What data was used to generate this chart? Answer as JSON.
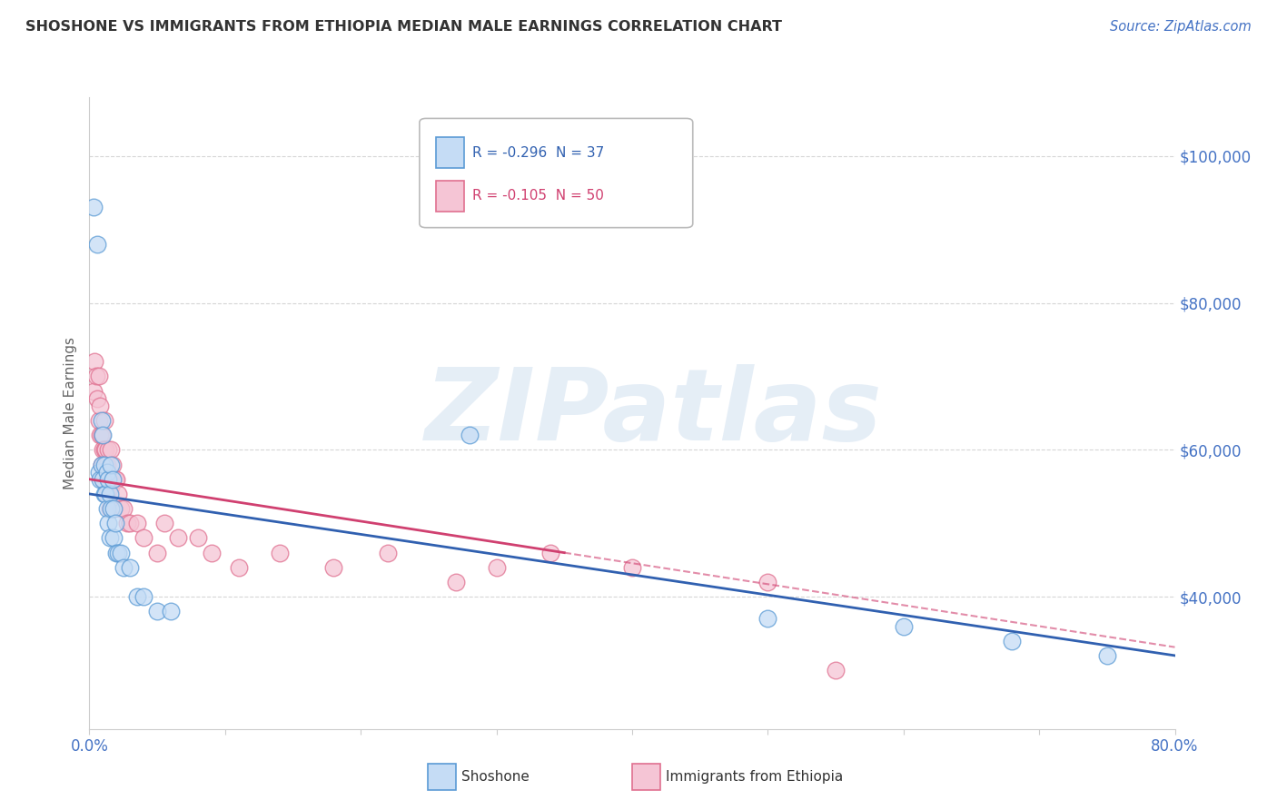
{
  "title": "SHOSHONE VS IMMIGRANTS FROM ETHIOPIA MEDIAN MALE EARNINGS CORRELATION CHART",
  "source": "Source: ZipAtlas.com",
  "ylabel": "Median Male Earnings",
  "yticks": [
    40000,
    60000,
    80000,
    100000
  ],
  "ytick_labels": [
    "$40,000",
    "$60,000",
    "$80,000",
    "$100,000"
  ],
  "xmin": 0.0,
  "xmax": 0.8,
  "ymin": 22000,
  "ymax": 108000,
  "legend_r1": "R = -0.296  N = 37",
  "legend_r2": "R = -0.105  N = 50",
  "color_shoshone_fill": "#c5dcf5",
  "color_shoshone_edge": "#5b9bd5",
  "color_ethiopia_fill": "#f5c5d5",
  "color_ethiopia_edge": "#e07090",
  "color_line_shoshone": "#3060b0",
  "color_line_ethiopia": "#d04070",
  "color_axis_label": "#4472c4",
  "watermark_text": "ZIPatlas",
  "shoshone_x": [
    0.003,
    0.006,
    0.007,
    0.008,
    0.009,
    0.009,
    0.01,
    0.01,
    0.011,
    0.011,
    0.012,
    0.013,
    0.013,
    0.014,
    0.014,
    0.015,
    0.015,
    0.016,
    0.016,
    0.017,
    0.018,
    0.018,
    0.019,
    0.02,
    0.021,
    0.023,
    0.025,
    0.03,
    0.035,
    0.04,
    0.05,
    0.06,
    0.28,
    0.5,
    0.6,
    0.68,
    0.75
  ],
  "shoshone_y": [
    93000,
    88000,
    57000,
    56000,
    64000,
    58000,
    56000,
    62000,
    54000,
    58000,
    54000,
    52000,
    57000,
    50000,
    56000,
    54000,
    48000,
    58000,
    52000,
    56000,
    52000,
    48000,
    50000,
    46000,
    46000,
    46000,
    44000,
    44000,
    40000,
    40000,
    38000,
    38000,
    62000,
    37000,
    36000,
    34000,
    32000
  ],
  "ethiopia_x": [
    0.003,
    0.004,
    0.005,
    0.006,
    0.007,
    0.007,
    0.008,
    0.008,
    0.009,
    0.009,
    0.01,
    0.01,
    0.011,
    0.011,
    0.012,
    0.012,
    0.013,
    0.013,
    0.014,
    0.014,
    0.015,
    0.015,
    0.016,
    0.016,
    0.017,
    0.018,
    0.019,
    0.02,
    0.021,
    0.023,
    0.025,
    0.028,
    0.03,
    0.035,
    0.04,
    0.05,
    0.055,
    0.065,
    0.08,
    0.09,
    0.11,
    0.14,
    0.18,
    0.22,
    0.27,
    0.3,
    0.34,
    0.4,
    0.5,
    0.55
  ],
  "ethiopia_y": [
    68000,
    72000,
    70000,
    67000,
    64000,
    70000,
    62000,
    66000,
    62000,
    58000,
    60000,
    56000,
    60000,
    64000,
    58000,
    60000,
    58000,
    54000,
    56000,
    60000,
    56000,
    52000,
    60000,
    55000,
    58000,
    52000,
    56000,
    56000,
    54000,
    52000,
    52000,
    50000,
    50000,
    50000,
    48000,
    46000,
    50000,
    48000,
    48000,
    46000,
    44000,
    46000,
    44000,
    46000,
    42000,
    44000,
    46000,
    44000,
    42000,
    30000
  ]
}
